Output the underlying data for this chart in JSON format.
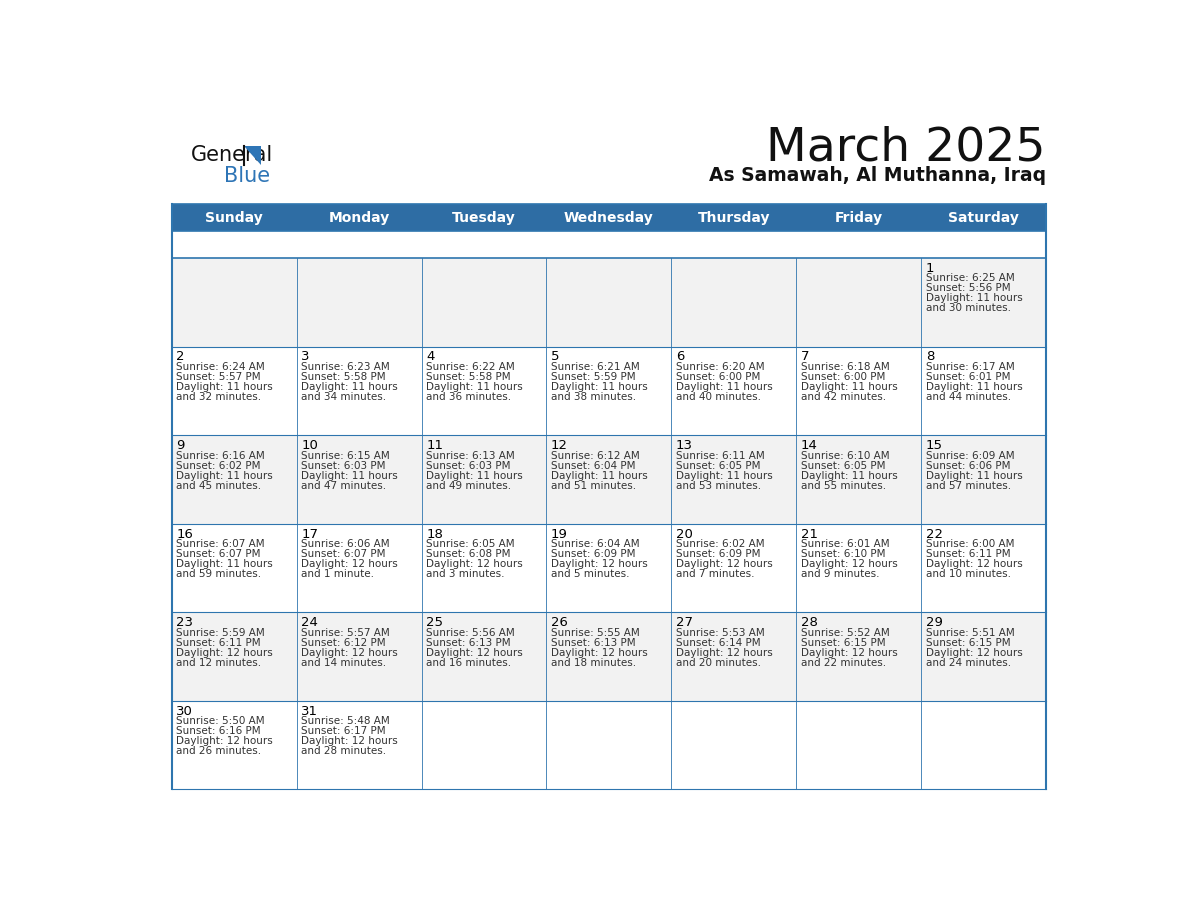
{
  "title": "March 2025",
  "subtitle": "As Samawah, Al Muthanna, Iraq",
  "days_of_week": [
    "Sunday",
    "Monday",
    "Tuesday",
    "Wednesday",
    "Thursday",
    "Friday",
    "Saturday"
  ],
  "header_bg": "#2E6DA4",
  "header_text": "#FFFFFF",
  "cell_bg_odd": "#F2F2F2",
  "cell_bg_even": "#FFFFFF",
  "border_color": "#2E75AE",
  "text_color": "#333333",
  "day_num_color": "#000000",
  "calendar": [
    [
      null,
      null,
      null,
      null,
      null,
      null,
      {
        "day": 1,
        "sunrise": "6:25 AM",
        "sunset": "5:56 PM",
        "daylight_h": "11 hours",
        "daylight_m": "30 minutes"
      }
    ],
    [
      {
        "day": 2,
        "sunrise": "6:24 AM",
        "sunset": "5:57 PM",
        "daylight_h": "11 hours",
        "daylight_m": "32 minutes"
      },
      {
        "day": 3,
        "sunrise": "6:23 AM",
        "sunset": "5:58 PM",
        "daylight_h": "11 hours",
        "daylight_m": "34 minutes"
      },
      {
        "day": 4,
        "sunrise": "6:22 AM",
        "sunset": "5:58 PM",
        "daylight_h": "11 hours",
        "daylight_m": "36 minutes"
      },
      {
        "day": 5,
        "sunrise": "6:21 AM",
        "sunset": "5:59 PM",
        "daylight_h": "11 hours",
        "daylight_m": "38 minutes"
      },
      {
        "day": 6,
        "sunrise": "6:20 AM",
        "sunset": "6:00 PM",
        "daylight_h": "11 hours",
        "daylight_m": "40 minutes"
      },
      {
        "day": 7,
        "sunrise": "6:18 AM",
        "sunset": "6:00 PM",
        "daylight_h": "11 hours",
        "daylight_m": "42 minutes"
      },
      {
        "day": 8,
        "sunrise": "6:17 AM",
        "sunset": "6:01 PM",
        "daylight_h": "11 hours",
        "daylight_m": "44 minutes"
      }
    ],
    [
      {
        "day": 9,
        "sunrise": "6:16 AM",
        "sunset": "6:02 PM",
        "daylight_h": "11 hours",
        "daylight_m": "45 minutes"
      },
      {
        "day": 10,
        "sunrise": "6:15 AM",
        "sunset": "6:03 PM",
        "daylight_h": "11 hours",
        "daylight_m": "47 minutes"
      },
      {
        "day": 11,
        "sunrise": "6:13 AM",
        "sunset": "6:03 PM",
        "daylight_h": "11 hours",
        "daylight_m": "49 minutes"
      },
      {
        "day": 12,
        "sunrise": "6:12 AM",
        "sunset": "6:04 PM",
        "daylight_h": "11 hours",
        "daylight_m": "51 minutes"
      },
      {
        "day": 13,
        "sunrise": "6:11 AM",
        "sunset": "6:05 PM",
        "daylight_h": "11 hours",
        "daylight_m": "53 minutes"
      },
      {
        "day": 14,
        "sunrise": "6:10 AM",
        "sunset": "6:05 PM",
        "daylight_h": "11 hours",
        "daylight_m": "55 minutes"
      },
      {
        "day": 15,
        "sunrise": "6:09 AM",
        "sunset": "6:06 PM",
        "daylight_h": "11 hours",
        "daylight_m": "57 minutes"
      }
    ],
    [
      {
        "day": 16,
        "sunrise": "6:07 AM",
        "sunset": "6:07 PM",
        "daylight_h": "11 hours",
        "daylight_m": "59 minutes"
      },
      {
        "day": 17,
        "sunrise": "6:06 AM",
        "sunset": "6:07 PM",
        "daylight_h": "12 hours",
        "daylight_m": "1 minute"
      },
      {
        "day": 18,
        "sunrise": "6:05 AM",
        "sunset": "6:08 PM",
        "daylight_h": "12 hours",
        "daylight_m": "3 minutes"
      },
      {
        "day": 19,
        "sunrise": "6:04 AM",
        "sunset": "6:09 PM",
        "daylight_h": "12 hours",
        "daylight_m": "5 minutes"
      },
      {
        "day": 20,
        "sunrise": "6:02 AM",
        "sunset": "6:09 PM",
        "daylight_h": "12 hours",
        "daylight_m": "7 minutes"
      },
      {
        "day": 21,
        "sunrise": "6:01 AM",
        "sunset": "6:10 PM",
        "daylight_h": "12 hours",
        "daylight_m": "9 minutes"
      },
      {
        "day": 22,
        "sunrise": "6:00 AM",
        "sunset": "6:11 PM",
        "daylight_h": "12 hours",
        "daylight_m": "10 minutes"
      }
    ],
    [
      {
        "day": 23,
        "sunrise": "5:59 AM",
        "sunset": "6:11 PM",
        "daylight_h": "12 hours",
        "daylight_m": "12 minutes"
      },
      {
        "day": 24,
        "sunrise": "5:57 AM",
        "sunset": "6:12 PM",
        "daylight_h": "12 hours",
        "daylight_m": "14 minutes"
      },
      {
        "day": 25,
        "sunrise": "5:56 AM",
        "sunset": "6:13 PM",
        "daylight_h": "12 hours",
        "daylight_m": "16 minutes"
      },
      {
        "day": 26,
        "sunrise": "5:55 AM",
        "sunset": "6:13 PM",
        "daylight_h": "12 hours",
        "daylight_m": "18 minutes"
      },
      {
        "day": 27,
        "sunrise": "5:53 AM",
        "sunset": "6:14 PM",
        "daylight_h": "12 hours",
        "daylight_m": "20 minutes"
      },
      {
        "day": 28,
        "sunrise": "5:52 AM",
        "sunset": "6:15 PM",
        "daylight_h": "12 hours",
        "daylight_m": "22 minutes"
      },
      {
        "day": 29,
        "sunrise": "5:51 AM",
        "sunset": "6:15 PM",
        "daylight_h": "12 hours",
        "daylight_m": "24 minutes"
      }
    ],
    [
      {
        "day": 30,
        "sunrise": "5:50 AM",
        "sunset": "6:16 PM",
        "daylight_h": "12 hours",
        "daylight_m": "26 minutes"
      },
      {
        "day": 31,
        "sunrise": "5:48 AM",
        "sunset": "6:17 PM",
        "daylight_h": "12 hours",
        "daylight_m": "28 minutes"
      },
      null,
      null,
      null,
      null,
      null
    ]
  ]
}
